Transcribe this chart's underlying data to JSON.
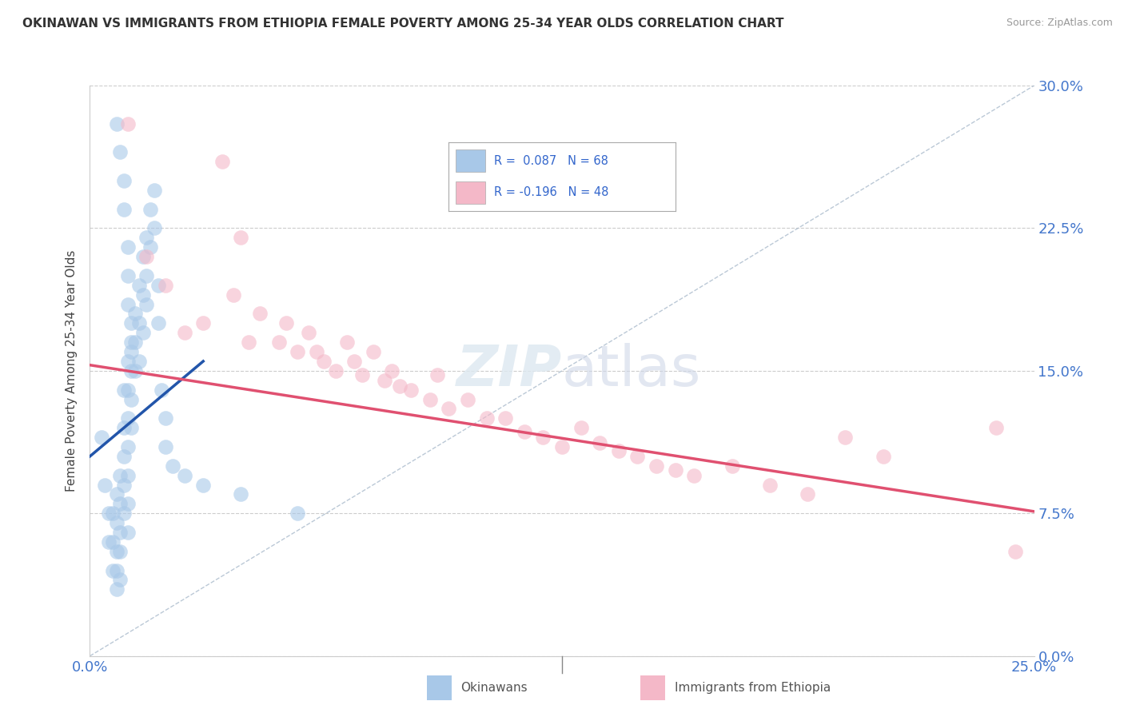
{
  "title": "OKINAWAN VS IMMIGRANTS FROM ETHIOPIA FEMALE POVERTY AMONG 25-34 YEAR OLDS CORRELATION CHART",
  "source": "Source: ZipAtlas.com",
  "ylabel": "Female Poverty Among 25-34 Year Olds",
  "xlim": [
    0.0,
    0.25
  ],
  "ylim": [
    0.0,
    0.3
  ],
  "ytick_labels": [
    "0.0%",
    "7.5%",
    "15.0%",
    "22.5%",
    "30.0%"
  ],
  "ytick_values": [
    0.0,
    0.075,
    0.15,
    0.225,
    0.3
  ],
  "xtick_values": [
    0.0,
    0.25
  ],
  "xtick_labels": [
    "0.0%",
    "25.0%"
  ],
  "blue_R": 0.087,
  "blue_N": 68,
  "pink_R": -0.196,
  "pink_N": 48,
  "blue_color": "#a8c8e8",
  "pink_color": "#f4b8c8",
  "blue_line_color": "#2255aa",
  "pink_line_color": "#e05070",
  "ref_line_color": "#aabbcc",
  "background_color": "#ffffff",
  "legend_label_blue": "Okinawans",
  "legend_label_pink": "Immigrants from Ethiopia",
  "blue_scatter_x": [
    0.003,
    0.004,
    0.005,
    0.005,
    0.006,
    0.006,
    0.006,
    0.007,
    0.007,
    0.007,
    0.007,
    0.007,
    0.008,
    0.008,
    0.008,
    0.008,
    0.008,
    0.009,
    0.009,
    0.009,
    0.009,
    0.009,
    0.01,
    0.01,
    0.01,
    0.01,
    0.01,
    0.01,
    0.01,
    0.011,
    0.011,
    0.011,
    0.011,
    0.012,
    0.012,
    0.012,
    0.013,
    0.013,
    0.013,
    0.014,
    0.014,
    0.014,
    0.015,
    0.015,
    0.015,
    0.016,
    0.016,
    0.017,
    0.017,
    0.018,
    0.018,
    0.019,
    0.02,
    0.02,
    0.022,
    0.025,
    0.03,
    0.04,
    0.055,
    0.007,
    0.008,
    0.009,
    0.009,
    0.01,
    0.01,
    0.01,
    0.011,
    0.011
  ],
  "blue_scatter_y": [
    0.115,
    0.09,
    0.075,
    0.06,
    0.075,
    0.06,
    0.045,
    0.085,
    0.07,
    0.055,
    0.045,
    0.035,
    0.095,
    0.08,
    0.065,
    0.055,
    0.04,
    0.14,
    0.12,
    0.105,
    0.09,
    0.075,
    0.155,
    0.14,
    0.125,
    0.11,
    0.095,
    0.08,
    0.065,
    0.165,
    0.15,
    0.135,
    0.12,
    0.18,
    0.165,
    0.15,
    0.195,
    0.175,
    0.155,
    0.21,
    0.19,
    0.17,
    0.22,
    0.2,
    0.185,
    0.235,
    0.215,
    0.245,
    0.225,
    0.195,
    0.175,
    0.14,
    0.125,
    0.11,
    0.1,
    0.095,
    0.09,
    0.085,
    0.075,
    0.28,
    0.265,
    0.25,
    0.235,
    0.215,
    0.2,
    0.185,
    0.175,
    0.16
  ],
  "pink_scatter_x": [
    0.01,
    0.015,
    0.02,
    0.025,
    0.03,
    0.035,
    0.038,
    0.04,
    0.042,
    0.045,
    0.05,
    0.052,
    0.055,
    0.058,
    0.06,
    0.062,
    0.065,
    0.068,
    0.07,
    0.072,
    0.075,
    0.078,
    0.08,
    0.082,
    0.085,
    0.09,
    0.092,
    0.095,
    0.1,
    0.105,
    0.11,
    0.115,
    0.12,
    0.125,
    0.13,
    0.135,
    0.14,
    0.145,
    0.15,
    0.155,
    0.16,
    0.17,
    0.18,
    0.19,
    0.2,
    0.21,
    0.24,
    0.245
  ],
  "pink_scatter_y": [
    0.28,
    0.21,
    0.195,
    0.17,
    0.175,
    0.26,
    0.19,
    0.22,
    0.165,
    0.18,
    0.165,
    0.175,
    0.16,
    0.17,
    0.16,
    0.155,
    0.15,
    0.165,
    0.155,
    0.148,
    0.16,
    0.145,
    0.15,
    0.142,
    0.14,
    0.135,
    0.148,
    0.13,
    0.135,
    0.125,
    0.125,
    0.118,
    0.115,
    0.11,
    0.12,
    0.112,
    0.108,
    0.105,
    0.1,
    0.098,
    0.095,
    0.1,
    0.09,
    0.085,
    0.115,
    0.105,
    0.12,
    0.055
  ],
  "blue_trend_x": [
    0.0,
    0.03
  ],
  "blue_trend_y": [
    0.105,
    0.155
  ],
  "pink_trend_x": [
    0.0,
    0.25
  ],
  "pink_trend_y": [
    0.153,
    0.076
  ],
  "ref_line_x": [
    0.0,
    0.25
  ],
  "ref_line_y": [
    0.0,
    0.3
  ]
}
